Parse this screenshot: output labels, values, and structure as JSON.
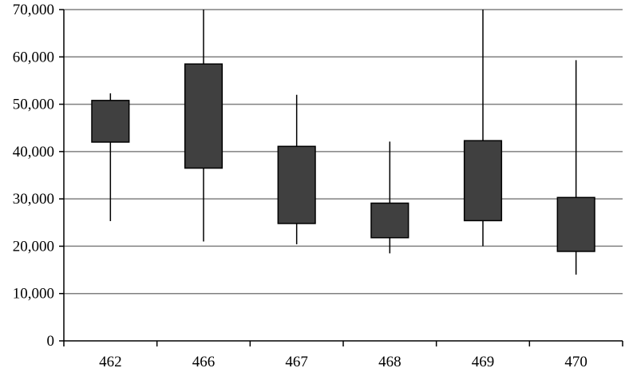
{
  "chart_data": {
    "type": "boxplot",
    "categories": [
      "462",
      "466",
      "467",
      "468",
      "469",
      "470"
    ],
    "boxes": [
      {
        "category": "462",
        "low": 25300,
        "q1": 42000,
        "q3": 50800,
        "high": 52300
      },
      {
        "category": "466",
        "low": 21000,
        "q1": 36500,
        "q3": 58500,
        "high": 70000
      },
      {
        "category": "467",
        "low": 20400,
        "q1": 24800,
        "q3": 41100,
        "high": 52000
      },
      {
        "category": "468",
        "low": 18500,
        "q1": 21800,
        "q3": 29100,
        "high": 42100
      },
      {
        "category": "469",
        "low": 20000,
        "q1": 25400,
        "q3": 42300,
        "high": 70000
      },
      {
        "category": "470",
        "low": 14000,
        "q1": 18900,
        "q3": 30300,
        "high": 59300
      }
    ],
    "yticks": [
      "0",
      "10,000",
      "20,000",
      "30,000",
      "40,000",
      "50,000",
      "60,000",
      "70,000"
    ],
    "ylim": [
      0,
      70000
    ],
    "grid": true,
    "colors": {
      "box_fill": "#404040",
      "grid": "#808080",
      "axis": "#000000"
    }
  }
}
